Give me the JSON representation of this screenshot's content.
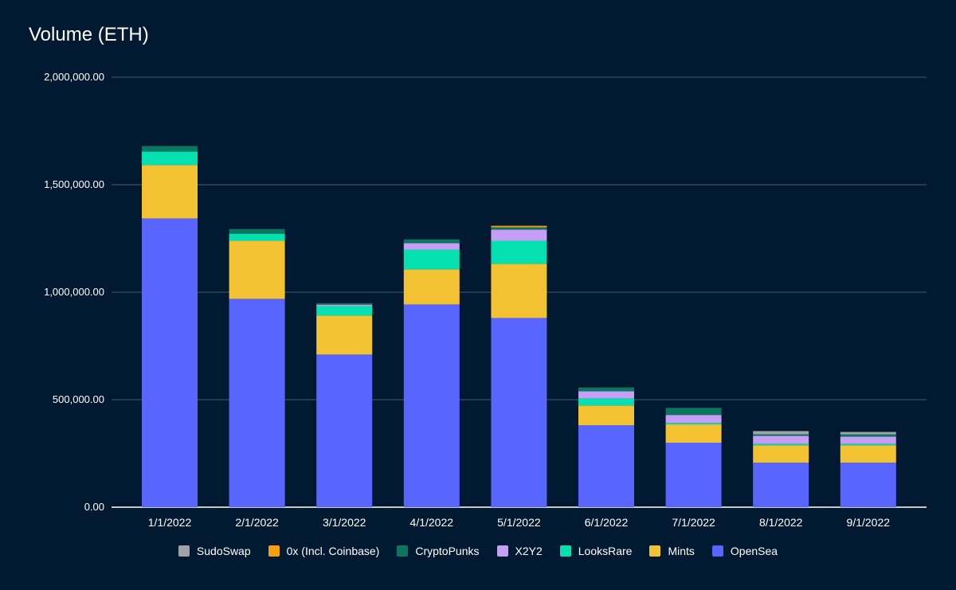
{
  "chart_data": {
    "type": "bar",
    "stacked": true,
    "title": "Volume (ETH)",
    "xlabel": "",
    "ylabel": "",
    "ylim": [
      0,
      2000000
    ],
    "yticks": [
      0,
      500000,
      1000000,
      1500000,
      2000000
    ],
    "ytick_labels": [
      "0.00",
      "500,000.00",
      "1,000,000.00",
      "1,500,000.00",
      "2,000,000.00"
    ],
    "grid": true,
    "legend_position": "bottom",
    "categories": [
      "1/1/2022",
      "2/1/2022",
      "3/1/2022",
      "4/1/2022",
      "5/1/2022",
      "6/1/2022",
      "7/1/2022",
      "8/1/2022",
      "9/1/2022"
    ],
    "series": [
      {
        "name": "OpenSea",
        "color": "#5965ff",
        "values": [
          1343000,
          969000,
          710000,
          943000,
          880000,
          381000,
          300000,
          207000,
          207000
        ]
      },
      {
        "name": "Mints",
        "color": "#f2c232",
        "values": [
          248000,
          270000,
          181000,
          163000,
          252000,
          92000,
          85000,
          81000,
          81000
        ]
      },
      {
        "name": "LooksRare",
        "color": "#05e0b0",
        "values": [
          63000,
          33000,
          44000,
          92000,
          107000,
          33000,
          7000,
          7000,
          7000
        ]
      },
      {
        "name": "X2Y2",
        "color": "#c79ef5",
        "values": [
          0,
          0,
          7000,
          30000,
          52000,
          33000,
          37000,
          37000,
          33000
        ]
      },
      {
        "name": "CryptoPunks",
        "color": "#0b7560",
        "values": [
          26000,
          22000,
          7000,
          18000,
          11000,
          18000,
          33000,
          7000,
          11000
        ]
      },
      {
        "name": "0x (Incl. Coinbase)",
        "color": "#f5a00a",
        "values": [
          0,
          0,
          0,
          0,
          7000,
          0,
          0,
          0,
          0
        ]
      },
      {
        "name": "SudoSwap",
        "color": "#a0a4a8",
        "values": [
          0,
          0,
          0,
          0,
          0,
          0,
          0,
          15000,
          11000
        ]
      }
    ],
    "legend_order": [
      "SudoSwap",
      "0x (Incl. Coinbase)",
      "CryptoPunks",
      "X2Y2",
      "LooksRare",
      "Mints",
      "OpenSea"
    ]
  }
}
